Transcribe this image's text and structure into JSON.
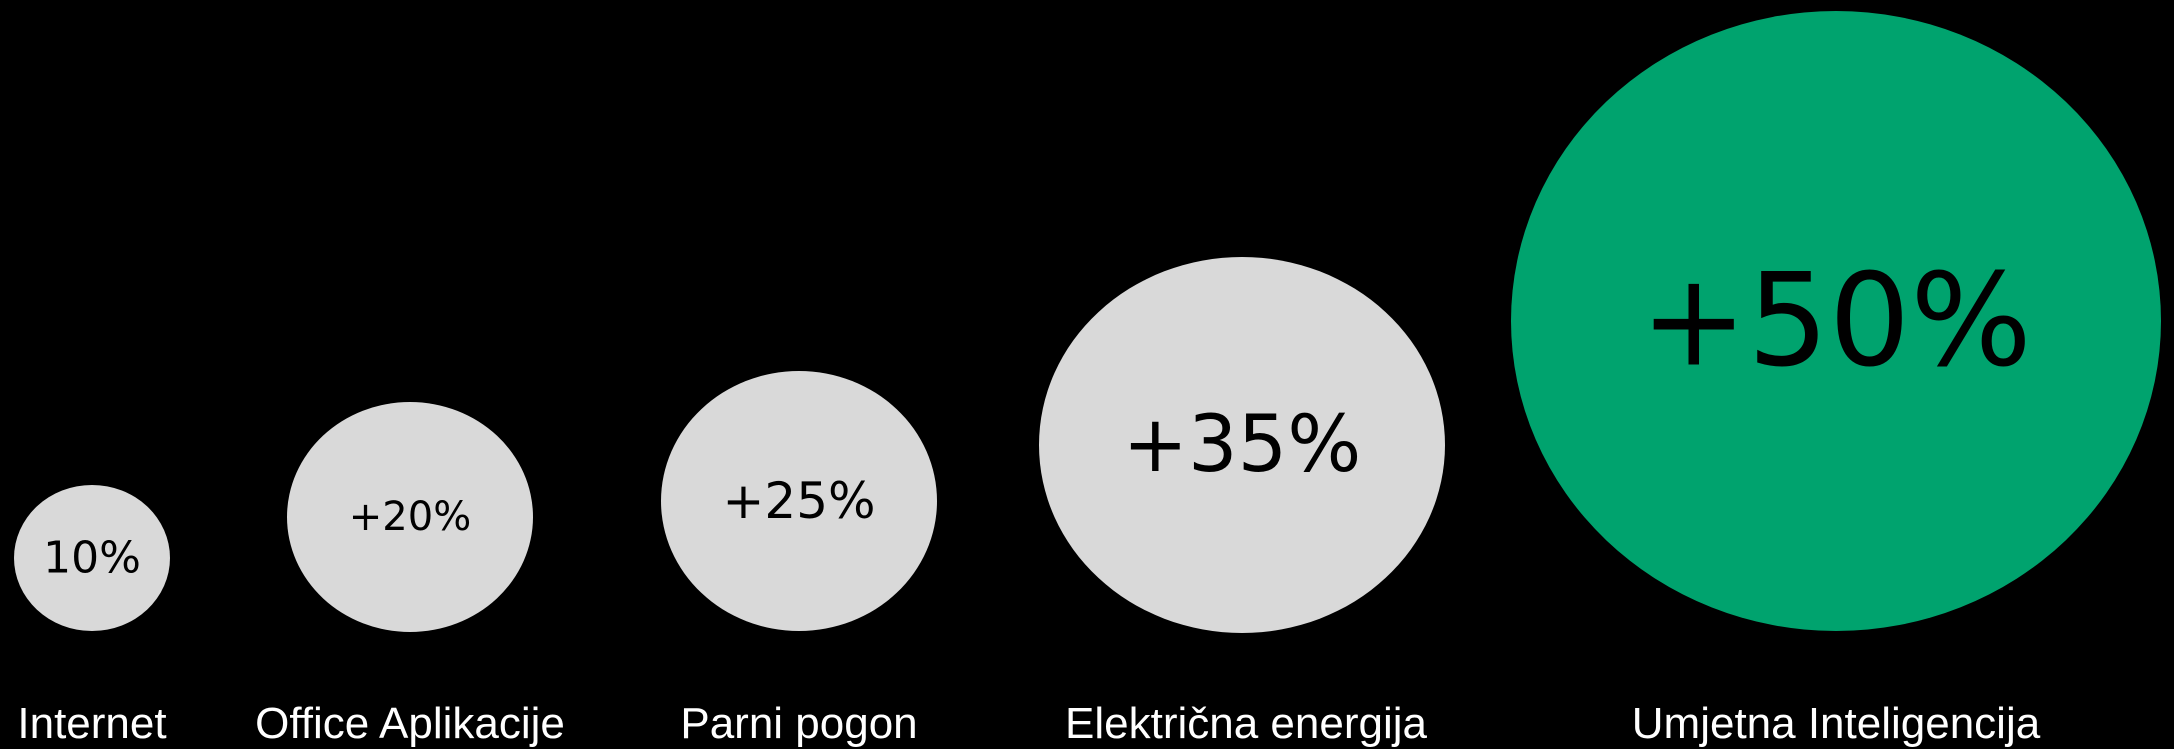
{
  "chart_data": {
    "type": "bubble",
    "title": "",
    "colors": {
      "background": "#000000",
      "default_bubble": "#d9d9d9",
      "highlight_bubble": "#00a36e",
      "value_text": "#000000",
      "label_text": "#ffffff"
    },
    "series": [
      {
        "label": "Internet",
        "value_label": "10%",
        "value": 10,
        "highlight": false
      },
      {
        "label": "Office Aplikacije",
        "value_label": "+20%",
        "value": 20,
        "highlight": false
      },
      {
        "label": "Parni pogon",
        "value_label": "+25%",
        "value": 25,
        "highlight": false
      },
      {
        "label": "Električna energija",
        "value_label": "+35%",
        "value": 35,
        "highlight": false
      },
      {
        "label": "Umjetna Inteligencija",
        "value_label": "+50%",
        "value": 50,
        "highlight": true
      }
    ]
  }
}
